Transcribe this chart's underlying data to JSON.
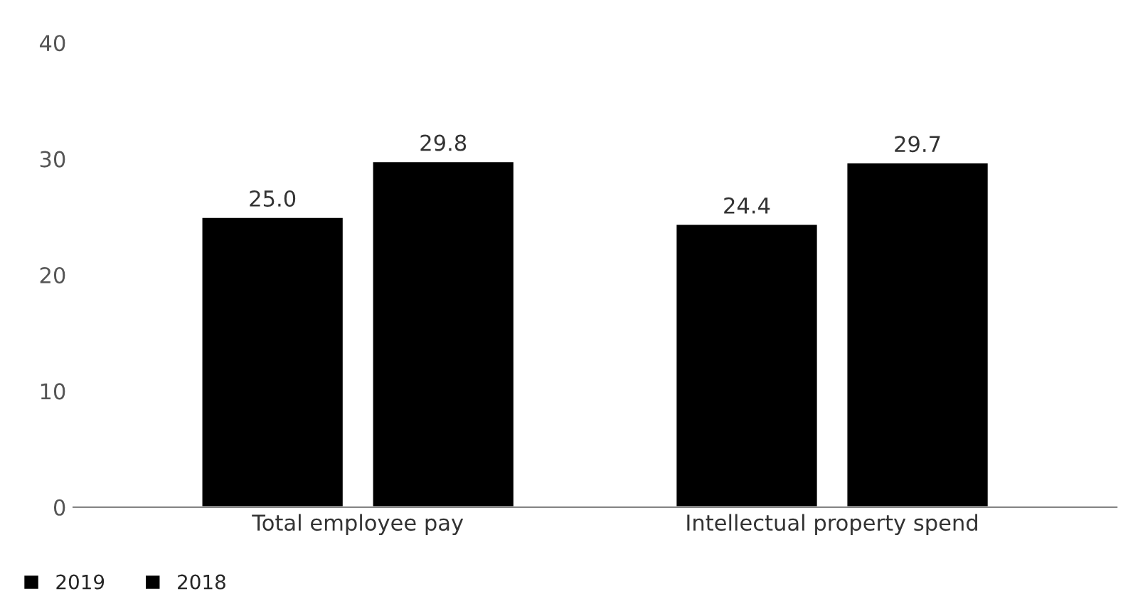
{
  "chart_data": {
    "type": "bar",
    "categories": [
      "Total employee pay",
      "Intellectual property spend"
    ],
    "series": [
      {
        "name": "2019",
        "color": "#000000",
        "values": [
          25.0,
          24.4
        ],
        "value_labels": [
          "25.0",
          "24.4"
        ]
      },
      {
        "name": "2018",
        "color": "#000000",
        "values": [
          29.8,
          29.7
        ],
        "value_labels": [
          "29.8",
          "29.7"
        ]
      }
    ],
    "ylim": [
      0,
      40
    ],
    "yticks": [
      0,
      10,
      20,
      30,
      40
    ],
    "grid": false,
    "legend": "bottom left"
  }
}
